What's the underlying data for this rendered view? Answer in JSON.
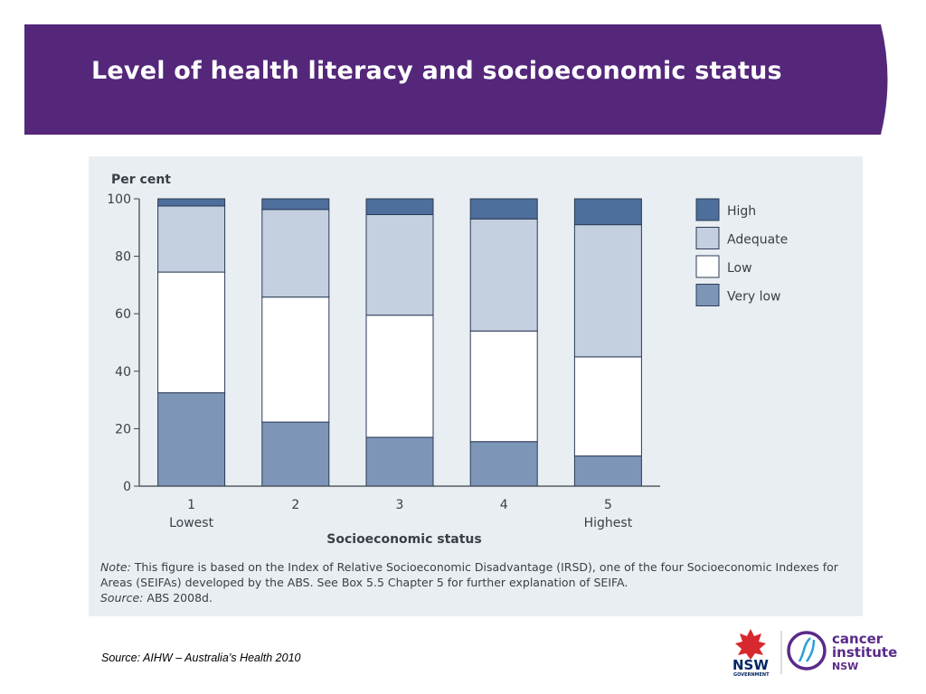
{
  "slide": {
    "title": "Level of health literacy and socioeconomic status",
    "source": "Source: AIHW – Australia’s Health 2010"
  },
  "colors": {
    "banner": "#54277a",
    "figure_bg": "#e9eef3",
    "high": "#4e6e9c",
    "adequate": "#c4cfe0",
    "low": "#ffffff",
    "very_low": "#7d96b8",
    "axis_text": "#3a3f45"
  },
  "figure": {
    "note_label": "Note:",
    "note_text": " This figure is based on the Index of Relative Socioeconomic Disadvantage (IRSD), one of the four Socioeconomic Indexes for Areas (SEIFAs) developed by the ABS. See Box 5.5 Chapter 5 for further explanation of SEIFA.",
    "source_label": "Source:",
    "source_text": " ABS 2008d."
  },
  "logos": {
    "nsw": "NSW",
    "nsw_sub": "GOVERNMENT",
    "cancer_line1": "cancer",
    "cancer_line2": "institute",
    "cancer_line3": "NSW"
  },
  "chart_data": {
    "type": "bar",
    "stacked": true,
    "ylabel": "Per cent",
    "xlabel": "Socioeconomic status",
    "ylim": [
      0,
      100
    ],
    "yticks": [
      0,
      20,
      40,
      60,
      80,
      100
    ],
    "categories": [
      "1",
      "2",
      "3",
      "4",
      "5"
    ],
    "category_sublabels": [
      "Lowest",
      "",
      "",
      "",
      "Highest"
    ],
    "grid": false,
    "legend_position": "right",
    "series": [
      {
        "name": "Very low",
        "color": "#7d96b8",
        "values": [
          32.5,
          22.3,
          17,
          15.5,
          10.5
        ]
      },
      {
        "name": "Low",
        "color": "#ffffff",
        "values": [
          42,
          43.5,
          42.5,
          38.5,
          34.5
        ]
      },
      {
        "name": "Adequate",
        "color": "#c4cfe0",
        "values": [
          23,
          30.5,
          35,
          39,
          46
        ]
      },
      {
        "name": "High",
        "color": "#4e6e9c",
        "values": [
          2.5,
          3.7,
          5.5,
          7,
          9
        ]
      }
    ],
    "legend_order": [
      "High",
      "Adequate",
      "Low",
      "Very low"
    ]
  }
}
